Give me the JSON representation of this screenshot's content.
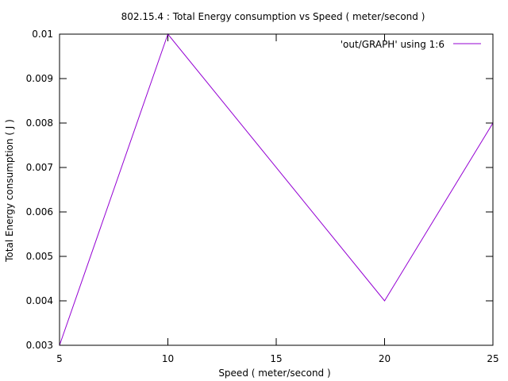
{
  "chart_data": {
    "type": "line",
    "title": "802.15.4 : Total Energy consumption vs Speed ( meter/second )",
    "xlabel": "Speed ( meter/second )",
    "ylabel": "Total Energy consumption ( J )",
    "xlim": [
      5,
      25
    ],
    "ylim": [
      0.003,
      0.01
    ],
    "x_ticks": [
      5,
      10,
      15,
      20,
      25
    ],
    "x_tick_labels": [
      "5",
      "10",
      "15",
      "20",
      "25"
    ],
    "y_ticks": [
      0.003,
      0.004,
      0.005,
      0.006,
      0.007,
      0.008,
      0.009,
      0.01
    ],
    "y_tick_labels": [
      "0.003",
      "0.004",
      "0.005",
      "0.006",
      "0.007",
      "0.008",
      "0.009",
      "0.01"
    ],
    "grid": false,
    "legend_position": "top-right",
    "series": [
      {
        "name": "'out/GRAPH' using 1:6",
        "color": "#9400d3",
        "x": [
          5,
          10,
          20,
          25
        ],
        "y": [
          0.003,
          0.01,
          0.004,
          0.008
        ]
      }
    ]
  }
}
